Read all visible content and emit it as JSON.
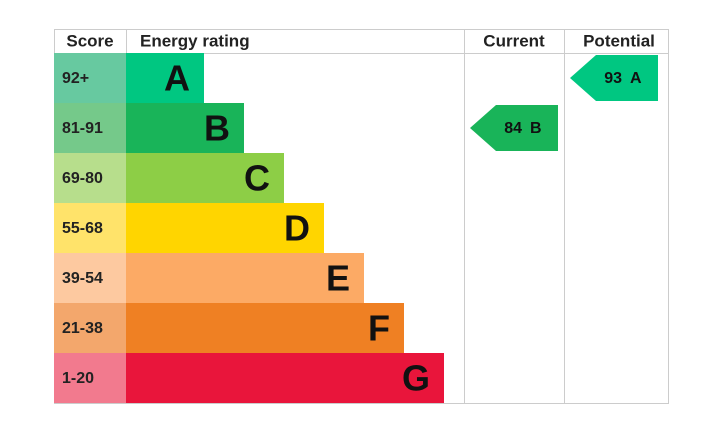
{
  "header": {
    "score": "Score",
    "rating": "Energy rating",
    "current": "Current",
    "potential": "Potential"
  },
  "bands": [
    {
      "score": "92+",
      "letter": "A",
      "color": "#00c781",
      "light": "#67c9a0"
    },
    {
      "score": "81-91",
      "letter": "B",
      "color": "#19b459",
      "light": "#75c98a"
    },
    {
      "score": "69-80",
      "letter": "C",
      "color": "#8dce46",
      "light": "#b7de8c"
    },
    {
      "score": "55-68",
      "letter": "D",
      "color": "#ffd500",
      "light": "#ffe36a"
    },
    {
      "score": "39-54",
      "letter": "E",
      "color": "#fcaa65",
      "light": "#fdc9a0"
    },
    {
      "score": "21-38",
      "letter": "F",
      "color": "#ef8023",
      "light": "#f3a76c"
    },
    {
      "score": "1-20",
      "letter": "G",
      "color": "#e9153b",
      "light": "#f27a8e"
    }
  ],
  "current": {
    "value": 84,
    "letter": "B"
  },
  "potential": {
    "value": 93,
    "letter": "A"
  }
}
